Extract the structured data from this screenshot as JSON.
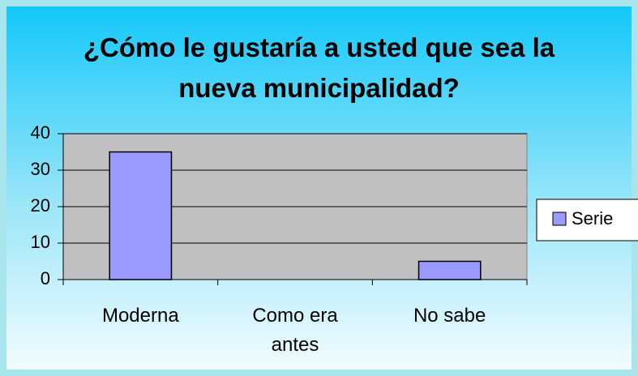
{
  "chart_data": {
    "type": "bar",
    "title": "¿Cómo le gustaría a usted que sea la nueva municipalidad?",
    "categories": [
      "Moderna",
      "Como era antes",
      "No sabe"
    ],
    "series": [
      {
        "name": "Serie",
        "color": "#9999ff",
        "values": [
          35,
          0,
          5
        ]
      }
    ],
    "ylim": [
      0,
      40
    ],
    "yticks": [
      0,
      10,
      20,
      30,
      40
    ],
    "grid": true,
    "legend": "right"
  }
}
